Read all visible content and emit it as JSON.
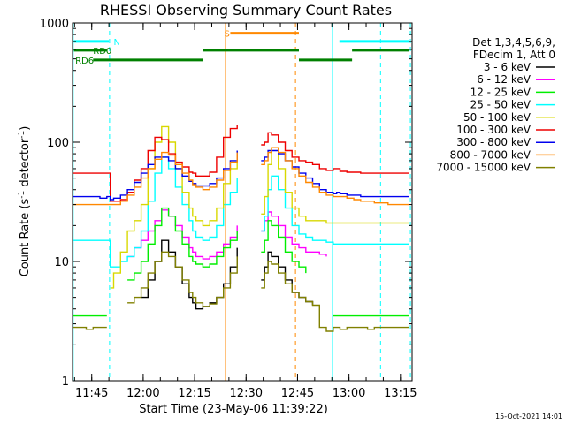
{
  "chart_data": {
    "type": "line",
    "title": "RHESSI Observing Summary Count Rates",
    "xlabel": "Start Time (23-May-06 11:39:22)",
    "ylabel_main": "Count Rate (s",
    "ylabel_sup1": "-1",
    "ylabel_mid": " detector",
    "ylabel_sup2": "-1",
    "ylabel_end": ")",
    "y_scale": "log",
    "ylim": [
      1,
      1000
    ],
    "xlim_min": [
      0,
      99
    ],
    "y_ticks": [
      {
        "value": 1,
        "label": "1"
      },
      {
        "value": 10,
        "label": "10"
      },
      {
        "value": 100,
        "label": "100"
      },
      {
        "value": 1000,
        "label": "1000"
      }
    ],
    "x_ticks": [
      {
        "value": 5.6,
        "label": "11:45"
      },
      {
        "value": 20.6,
        "label": "12:00"
      },
      {
        "value": 35.6,
        "label": "12:15"
      },
      {
        "value": 50.6,
        "label": "12:30"
      },
      {
        "value": 65.6,
        "label": "12:45"
      },
      {
        "value": 80.6,
        "label": "13:00"
      },
      {
        "value": 95.6,
        "label": "13:15"
      }
    ],
    "legend_header": [
      "Det 1,3,4,5,6,9,",
      "FDecim 1, Att 0"
    ],
    "series": [
      {
        "name": "3 - 6 keV",
        "color": "#000000",
        "key": "s36"
      },
      {
        "name": "6 - 12 keV",
        "color": "#ff00ff",
        "key": "s612"
      },
      {
        "name": "12 - 25 keV",
        "color": "#00ee00",
        "key": "s1225"
      },
      {
        "name": "25 - 50 keV",
        "color": "#00ffff",
        "key": "s2550"
      },
      {
        "name": "50 - 100 keV",
        "color": "#d8d800",
        "key": "s50100"
      },
      {
        "name": "100 - 300 keV",
        "color": "#ee0000",
        "key": "s100300"
      },
      {
        "name": "300 - 800 keV",
        "color": "#0000ee",
        "key": "s300800"
      },
      {
        "name": "800 - 7000 keV",
        "color": "#ff8800",
        "key": "s8007000"
      },
      {
        "name": "7000 - 15000 keV",
        "color": "#808000",
        "key": "s700015000"
      }
    ],
    "time_min": [
      0,
      2,
      4,
      6,
      8,
      10,
      11,
      12,
      14,
      16,
      18,
      20,
      22,
      24,
      26,
      28,
      30,
      32,
      34,
      35,
      36,
      38,
      40,
      42,
      44,
      46,
      48,
      53.5,
      55,
      56,
      57,
      58,
      60,
      62,
      64,
      66,
      68,
      70,
      72,
      74,
      76,
      77,
      78,
      80,
      82,
      84,
      86,
      88,
      90,
      92,
      94,
      96,
      98
    ],
    "values": {
      "s100300": [
        55,
        55,
        55,
        55,
        55,
        55,
        32,
        32,
        33,
        38,
        48,
        60,
        85,
        110,
        105,
        80,
        68,
        62,
        56,
        55,
        52,
        52,
        56,
        75,
        110,
        130,
        140,
        null,
        95,
        100,
        120,
        115,
        100,
        85,
        75,
        70,
        68,
        65,
        60,
        58,
        60,
        60,
        57,
        56,
        56,
        55,
        55,
        55,
        55,
        55,
        55,
        55,
        55
      ],
      "s300800": [
        35,
        35,
        35,
        35,
        34,
        35,
        33,
        34,
        36,
        40,
        46,
        55,
        65,
        75,
        75,
        70,
        60,
        52,
        47,
        45,
        43,
        43,
        45,
        50,
        60,
        70,
        85,
        null,
        70,
        75,
        85,
        85,
        80,
        70,
        62,
        55,
        50,
        45,
        40,
        38,
        37,
        38,
        37,
        36,
        36,
        35,
        35,
        35,
        35,
        35,
        35,
        35,
        35
      ],
      "s8007000": [
        30,
        30,
        30,
        30,
        30,
        30,
        30,
        30,
        32,
        36,
        42,
        50,
        60,
        72,
        82,
        78,
        65,
        55,
        48,
        44,
        42,
        40,
        42,
        48,
        58,
        68,
        82,
        null,
        65,
        70,
        82,
        90,
        82,
        70,
        60,
        52,
        46,
        42,
        38,
        36,
        35,
        35,
        35,
        34,
        33,
        32,
        32,
        31,
        31,
        30,
        30,
        30,
        30
      ],
      "s50100": [
        null,
        null,
        null,
        null,
        null,
        null,
        6,
        8,
        12,
        18,
        22,
        30,
        60,
        100,
        135,
        100,
        60,
        38,
        28,
        24,
        22,
        20,
        22,
        28,
        45,
        60,
        85,
        null,
        25,
        35,
        65,
        90,
        60,
        38,
        28,
        24,
        22,
        22,
        22,
        21,
        21,
        21,
        21,
        21,
        21,
        21,
        21,
        21,
        21,
        21,
        21,
        21,
        21
      ],
      "s2550": [
        15,
        15,
        15,
        15,
        15,
        15,
        9,
        9,
        10,
        11,
        13,
        18,
        32,
        55,
        75,
        60,
        42,
        30,
        22,
        18,
        16,
        15,
        16,
        20,
        30,
        38,
        50,
        null,
        18,
        24,
        40,
        52,
        40,
        28,
        20,
        17,
        16,
        15,
        15,
        14.5,
        14,
        14,
        14,
        14,
        14,
        14,
        14,
        14,
        14,
        14,
        14,
        14,
        14
      ],
      "s612": [
        null,
        null,
        null,
        null,
        null,
        null,
        null,
        null,
        null,
        11,
        13,
        15,
        18,
        22,
        27,
        24,
        20,
        16,
        13,
        12,
        11,
        10.5,
        11,
        12,
        14,
        16,
        20,
        null,
        18,
        22,
        26,
        24,
        20,
        16,
        14,
        13,
        12,
        12,
        11.5,
        11,
        null,
        null,
        null,
        null,
        null,
        null,
        null,
        null,
        null,
        null,
        null,
        null,
        null
      ],
      "s1225": [
        3.5,
        3.5,
        3.5,
        3.5,
        3.5,
        3.5,
        null,
        null,
        null,
        7,
        8,
        10,
        14,
        20,
        28,
        24,
        18,
        14,
        11,
        10,
        9.5,
        9,
        9.5,
        11,
        13,
        15,
        18,
        null,
        12,
        15,
        22,
        20,
        16,
        12,
        10,
        9,
        8,
        null,
        null,
        null,
        3.5,
        3.5,
        3.5,
        3.5,
        3.5,
        3.5,
        3.5,
        3.5,
        3.5,
        3.5,
        3.5,
        3.5,
        3.5
      ],
      "s36": [
        null,
        null,
        null,
        null,
        null,
        null,
        null,
        null,
        null,
        null,
        null,
        5,
        7,
        10,
        15,
        12,
        9,
        6.5,
        5,
        4.5,
        4,
        4.2,
        4.5,
        5,
        6.5,
        9,
        13,
        null,
        7,
        9,
        12,
        11,
        9,
        7,
        5.5,
        5,
        4.6,
        4.3,
        null,
        null,
        null,
        null,
        null,
        null,
        null,
        null,
        null,
        null,
        null,
        null,
        null,
        null,
        null
      ],
      "s700015000": [
        2.8,
        2.8,
        2.7,
        2.8,
        2.8,
        2.8,
        null,
        null,
        null,
        4.5,
        5,
        6,
        8,
        10,
        12,
        11,
        9,
        7,
        5.5,
        5,
        4.5,
        4.2,
        4.4,
        5,
        6,
        8,
        11,
        null,
        6,
        8,
        10,
        9.5,
        8,
        6.5,
        5.5,
        5,
        4.6,
        4.3,
        2.8,
        2.6,
        2.8,
        2.8,
        2.7,
        2.8,
        2.8,
        2.8,
        2.7,
        2.8,
        2.8,
        2.8,
        2.8,
        2.8,
        2.8
      ]
    },
    "vlines": [
      {
        "t": 10.8,
        "color": "#00ffff",
        "style": "dashed"
      },
      {
        "t": 44.6,
        "color": "#ff8800",
        "style": "solid"
      },
      {
        "t": 65.0,
        "color": "#ff8800",
        "style": "dashed"
      },
      {
        "t": 75.8,
        "color": "#00ffff",
        "style": "solid"
      },
      {
        "t": 89.8,
        "color": "#00ffff",
        "style": "dashed"
      },
      {
        "t": 0.2,
        "color": "#00ffff",
        "style": "solid"
      },
      {
        "t": 98.5,
        "color": "#00ffff",
        "style": "dashed"
      }
    ],
    "flag_bars": [
      {
        "t0": 0.4,
        "t1": 10.6,
        "y": 700,
        "color": "#00ffff",
        "label": "N",
        "label_t": 12.0
      },
      {
        "t0": 77.8,
        "t1": 98.2,
        "y": 700,
        "color": "#00ffff",
        "label": "",
        "label_t": 0
      },
      {
        "t0": 0.4,
        "t1": 10.0,
        "y": 590,
        "color": "#008000",
        "label": "RD0",
        "label_t": 6.0
      },
      {
        "t0": 6.0,
        "t1": 38.0,
        "y": 490,
        "color": "#008000",
        "label": "RD6",
        "label_t": 0.8
      },
      {
        "t0": 38.0,
        "t1": 66.0,
        "y": 590,
        "color": "#008000",
        "label": "",
        "label_t": 0
      },
      {
        "t0": 66.0,
        "t1": 81.5,
        "y": 490,
        "color": "#008000",
        "label": "",
        "label_t": 0
      },
      {
        "t0": 81.5,
        "t1": 98.0,
        "y": 590,
        "color": "#008000",
        "label": "",
        "label_t": 0
      },
      {
        "t0": 46.0,
        "t1": 66.0,
        "y": 820,
        "color": "#ff8800",
        "label": "S",
        "label_t": 44.2
      }
    ],
    "timestamp": "15-Oct-2021 14:01"
  }
}
